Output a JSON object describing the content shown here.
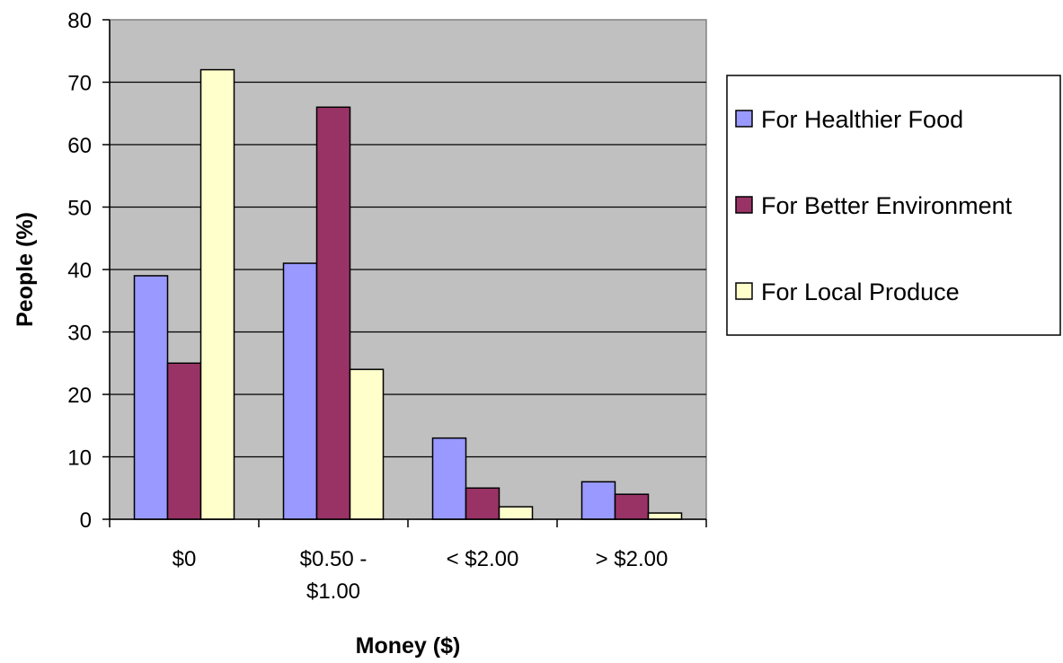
{
  "chart_data": {
    "type": "bar",
    "title": "",
    "xlabel": "Money ($)",
    "ylabel": "People (%)",
    "ylim": [
      0,
      80
    ],
    "ytick_step": 10,
    "grid": true,
    "legend_position": "right",
    "plot_background": "#c0c0c0",
    "categories": [
      [
        "$0"
      ],
      [
        "$0.50 -",
        "$1.00"
      ],
      [
        "< $2.00"
      ],
      [
        "> $2.00"
      ]
    ],
    "series": [
      {
        "name": "For Healthier Food",
        "color": "#9999ff",
        "values": [
          39,
          41,
          13,
          6
        ]
      },
      {
        "name": "For Better Environment",
        "color": "#993366",
        "values": [
          25,
          66,
          5,
          4
        ]
      },
      {
        "name": "For Local Produce",
        "color": "#ffffcc",
        "values": [
          72,
          24,
          2,
          1
        ]
      }
    ]
  }
}
